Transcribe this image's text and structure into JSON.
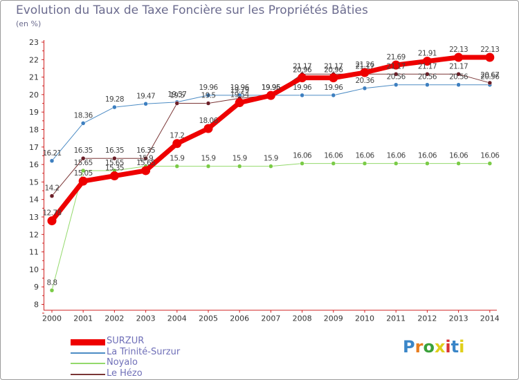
{
  "title": "Evolution du Taux de Taxe Foncière sur les Propriétés Bâties",
  "unit_label": "(en %)",
  "logo_text": "Proxiti",
  "chart_data": {
    "type": "line",
    "title": "Evolution du Taux de Taxe Foncière sur les Propriétés Bâties",
    "ylabel": "(en %)",
    "xlabel": "",
    "ylim": [
      8,
      23
    ],
    "yticks": [
      "8",
      "9",
      "10",
      "11",
      "12",
      "13",
      "14",
      "15",
      "16",
      "17",
      "18",
      "19",
      "20",
      "21",
      "22",
      "23"
    ],
    "categories": [
      "2000",
      "2001",
      "2002",
      "2003",
      "2004",
      "2005",
      "2006",
      "2007",
      "2008",
      "2009",
      "2010",
      "2011",
      "2012",
      "2013",
      "2014"
    ],
    "series": [
      {
        "name": "La Trinité-Surzur",
        "color": "#4b8bc4",
        "marker": "#3d7fc0",
        "width": 1,
        "values": [
          16.21,
          18.36,
          19.28,
          19.47,
          19.57,
          19.96,
          19.96,
          19.96,
          19.96,
          19.96,
          20.36,
          20.56,
          20.56,
          20.56,
          20.56
        ],
        "labels": [
          "16.21",
          "18.36",
          "19.28",
          "19.47",
          "19.57",
          "19.96",
          "19.96",
          "19.96",
          "19.96",
          "19.96",
          "20.36",
          "20.56",
          "20.56",
          "20.56",
          "20.56"
        ]
      },
      {
        "name": "Noyalo",
        "color": "#93d96b",
        "marker": "#7acb46",
        "width": 1,
        "values": [
          8.8,
          15.65,
          15.65,
          15.9,
          15.9,
          15.9,
          15.9,
          15.9,
          16.06,
          16.06,
          16.06,
          16.06,
          16.06,
          16.06,
          16.06
        ],
        "labels": [
          "8.8",
          "15.65",
          "15.65",
          "15.9",
          "15.9",
          "15.9",
          "15.9",
          "15.9",
          "16.06",
          "16.06",
          "16.06",
          "16.06",
          "16.06",
          "16.06",
          "16.06"
        ]
      },
      {
        "name": "Le Hézo",
        "color": "#7a3535",
        "marker": "#6b1f28",
        "width": 1,
        "values": [
          14.2,
          16.35,
          16.35,
          16.35,
          19.5,
          19.5,
          19.79,
          19.95,
          21.17,
          21.17,
          21.17,
          21.17,
          21.17,
          21.17,
          20.67
        ],
        "labels": [
          "14.2",
          "16.35",
          "16.35",
          "16.35",
          "19.5",
          "19.5",
          "19.79",
          "19.95",
          "21.17",
          "21.17",
          "21.17",
          "21.17",
          "21.17",
          "21.17",
          "20.67"
        ]
      },
      {
        "name": "SURZUR",
        "color": "#ee0000",
        "marker": "#ee0000",
        "width": 7,
        "values": [
          12.78,
          15.05,
          15.35,
          15.65,
          17.2,
          18.06,
          19.54,
          19.95,
          20.96,
          20.96,
          21.26,
          21.69,
          21.91,
          22.13,
          22.13
        ],
        "labels": [
          "12.78",
          "15.05",
          "15.35",
          "15.65",
          "17.2",
          "18.06",
          "19.54",
          "19.95",
          "20.96",
          "20.96",
          "21.26",
          "21.69",
          "21.91",
          "22.13",
          "22.13"
        ]
      }
    ],
    "legend": [
      "SURZUR",
      "La Trinité-Surzur",
      "Noyalo",
      "Le Hézo"
    ],
    "legend_position": "bottom-left",
    "grid": false
  }
}
